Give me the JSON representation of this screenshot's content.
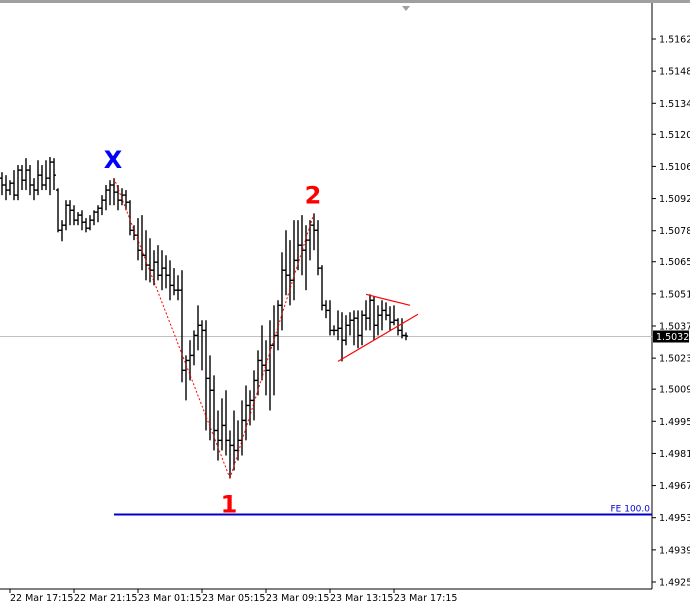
{
  "chart_data": {
    "type": "ohlc-bar",
    "title": "",
    "xlabel": "",
    "ylabel": "",
    "ylim": [
      1.492,
      1.5172
    ],
    "grid": false,
    "price_ticks": [
      "1.51620",
      "1.51480",
      "1.51340",
      "1.51205",
      "1.51065",
      "1.50925",
      "1.50785",
      "1.50650",
      "1.50510",
      "1.50370",
      "1.50230",
      "1.50095",
      "1.49955",
      "1.49815",
      "1.49675",
      "1.49535",
      "1.49395",
      "1.49255"
    ],
    "time_ticks": [
      {
        "bar": 2,
        "label": "22 Mar 17:15"
      },
      {
        "bar": 18,
        "label": "22 Mar 21:15"
      },
      {
        "bar": 34,
        "label": "23 Mar 01:15"
      },
      {
        "bar": 50,
        "label": "23 Mar 05:15"
      },
      {
        "bar": 66,
        "label": "23 Mar 09:15"
      },
      {
        "bar": 82,
        "label": "23 Mar 13:15"
      },
      {
        "bar": 98,
        "label": "23 Mar 17:15"
      }
    ],
    "current_price": {
      "value": 1.50326,
      "label": "1.50326"
    },
    "bars_ohlc": [
      [
        1.51014,
        1.5104,
        1.5094,
        1.50984
      ],
      [
        1.50984,
        1.51027,
        1.50918,
        1.50962
      ],
      [
        1.50962,
        1.51005,
        1.5094,
        1.50992
      ],
      [
        1.50992,
        1.51049,
        1.50918,
        1.5094
      ],
      [
        1.5094,
        1.51071,
        1.50918,
        1.51049
      ],
      [
        1.51049,
        1.51071,
        1.50962,
        1.51005
      ],
      [
        1.51005,
        1.51101,
        1.50962,
        1.51049
      ],
      [
        1.51049,
        1.51071,
        1.5094,
        1.50984
      ],
      [
        1.50984,
        1.51014,
        1.50918,
        1.50962
      ],
      [
        1.50962,
        1.51092,
        1.5094,
        1.51027
      ],
      [
        1.51027,
        1.51071,
        1.50962,
        1.50984
      ],
      [
        1.50984,
        1.51092,
        1.50962,
        1.51014
      ],
      [
        1.51014,
        1.51106,
        1.5094,
        1.51084
      ],
      [
        1.51084,
        1.51101,
        1.50962,
        1.51027
      ],
      [
        1.50962,
        1.5097,
        1.50778,
        1.50787
      ],
      [
        1.50787,
        1.50831,
        1.50739,
        1.50809
      ],
      [
        1.50809,
        1.50918,
        1.50787,
        1.50896
      ],
      [
        1.50896,
        1.50918,
        1.50809,
        1.50874
      ],
      [
        1.50874,
        1.50896,
        1.50809,
        1.50831
      ],
      [
        1.50831,
        1.50866,
        1.50809,
        1.50853
      ],
      [
        1.50853,
        1.50874,
        1.50787,
        1.50822
      ],
      [
        1.50822,
        1.5084,
        1.50778,
        1.50796
      ],
      [
        1.50796,
        1.50853,
        1.50787,
        1.50831
      ],
      [
        1.50831,
        1.50874,
        1.50809,
        1.50866
      ],
      [
        1.50866,
        1.50896,
        1.50822,
        1.50883
      ],
      [
        1.50883,
        1.5094,
        1.50853,
        1.50918
      ],
      [
        1.50918,
        1.50984,
        1.50874,
        1.50962
      ],
      [
        1.50962,
        1.51005,
        1.50896,
        1.50984
      ],
      [
        1.50984,
        1.51014,
        1.50896,
        1.50953
      ],
      [
        1.50953,
        1.50984,
        1.50874,
        1.50918
      ],
      [
        1.50918,
        1.5097,
        1.50896,
        1.5094
      ],
      [
        1.5094,
        1.50962,
        1.50874,
        1.50909
      ],
      [
        1.50909,
        1.50918,
        1.50765,
        1.50787
      ],
      [
        1.50787,
        1.50809,
        1.50744,
        1.50765
      ],
      [
        1.50765,
        1.5084,
        1.50656,
        1.507
      ],
      [
        1.507,
        1.50853,
        1.50613,
        1.50678
      ],
      [
        1.50678,
        1.50787,
        1.50569,
        1.50635
      ],
      [
        1.50635,
        1.50752,
        1.5056,
        1.50613
      ],
      [
        1.50613,
        1.507,
        1.50547,
        1.50648
      ],
      [
        1.50648,
        1.50722,
        1.50569,
        1.50591
      ],
      [
        1.50591,
        1.507,
        1.50526,
        1.50622
      ],
      [
        1.50622,
        1.50678,
        1.50534,
        1.50591
      ],
      [
        1.50591,
        1.50656,
        1.50482,
        1.50547
      ],
      [
        1.50547,
        1.50622,
        1.50504,
        1.50526
      ],
      [
        1.50526,
        1.50591,
        1.50482,
        1.50526
      ],
      [
        1.50526,
        1.50613,
        1.50125,
        1.50177
      ],
      [
        1.50177,
        1.50242,
        1.50046,
        1.5022
      ],
      [
        1.5022,
        1.50308,
        1.50133,
        1.50242
      ],
      [
        1.50242,
        1.50351,
        1.50199,
        1.50329
      ],
      [
        1.50329,
        1.5046,
        1.50264,
        1.50373
      ],
      [
        1.50373,
        1.50395,
        1.50177,
        1.50351
      ],
      [
        1.50351,
        1.50395,
        1.49915,
        1.50142
      ],
      [
        1.50142,
        1.50242,
        1.49872,
        1.5009
      ],
      [
        1.5009,
        1.50155,
        1.49828,
        1.49915
      ],
      [
        1.49915,
        1.50002,
        1.49784,
        1.49872
      ],
      [
        1.49872,
        1.50055,
        1.49828,
        1.49937
      ],
      [
        1.49937,
        1.5009,
        1.49806,
        1.49872
      ],
      [
        1.49872,
        1.49915,
        1.49706,
        1.4985
      ],
      [
        1.4985,
        1.50002,
        1.49741,
        1.49828
      ],
      [
        1.49828,
        1.49959,
        1.49784,
        1.49872
      ],
      [
        1.49872,
        1.50046,
        1.49806,
        1.49959
      ],
      [
        1.49959,
        1.50111,
        1.49872,
        1.50024
      ],
      [
        1.50024,
        1.5009,
        1.49937,
        1.50046
      ],
      [
        1.50046,
        1.50177,
        1.49959,
        1.50133
      ],
      [
        1.50133,
        1.50264,
        1.50068,
        1.5022
      ],
      [
        1.5022,
        1.50373,
        1.50133,
        1.50199
      ],
      [
        1.50199,
        1.50308,
        1.50068,
        1.50177
      ],
      [
        1.50177,
        1.50395,
        1.50002,
        1.50286
      ],
      [
        1.50286,
        1.5046,
        1.50068,
        1.50329
      ],
      [
        1.50329,
        1.50482,
        1.50264,
        1.5046
      ],
      [
        1.5046,
        1.50691,
        1.50351,
        1.50613
      ],
      [
        1.50613,
        1.50787,
        1.50504,
        1.50591
      ],
      [
        1.50591,
        1.50744,
        1.5046,
        1.50569
      ],
      [
        1.50569,
        1.50831,
        1.50482,
        1.50656
      ],
      [
        1.50656,
        1.50831,
        1.50613,
        1.50722
      ],
      [
        1.50722,
        1.50853,
        1.50591,
        1.507
      ],
      [
        1.507,
        1.50809,
        1.50526,
        1.50744
      ],
      [
        1.50744,
        1.50831,
        1.50656,
        1.50809
      ],
      [
        1.50809,
        1.50861,
        1.507,
        1.50787
      ],
      [
        1.50787,
        1.50831,
        1.50591,
        1.50622
      ],
      [
        1.50622,
        1.50635,
        1.50438,
        1.5046
      ],
      [
        1.5046,
        1.50482,
        1.50404,
        1.50438
      ],
      [
        1.50438,
        1.50482,
        1.50329,
        1.50351
      ],
      [
        1.50351,
        1.50373,
        1.50329,
        1.50351
      ],
      [
        1.50351,
        1.50438,
        1.50308,
        1.5036
      ],
      [
        1.5036,
        1.5043,
        1.50216,
        1.50308
      ],
      [
        1.50308,
        1.50417,
        1.50286,
        1.50373
      ],
      [
        1.50373,
        1.5043,
        1.50329,
        1.50395
      ],
      [
        1.50395,
        1.50438,
        1.50286,
        1.50404
      ],
      [
        1.50404,
        1.50438,
        1.50273,
        1.50329
      ],
      [
        1.50329,
        1.50438,
        1.50286,
        1.50417
      ],
      [
        1.50417,
        1.50482,
        1.50351,
        1.50404
      ],
      [
        1.50404,
        1.50508,
        1.50351,
        1.50482
      ],
      [
        1.50482,
        1.505,
        1.50308,
        1.50373
      ],
      [
        1.50373,
        1.5046,
        1.50329,
        1.50417
      ],
      [
        1.50417,
        1.50482,
        1.50351,
        1.50438
      ],
      [
        1.50438,
        1.50473,
        1.50395,
        1.50417
      ],
      [
        1.50417,
        1.50456,
        1.50351,
        1.50386
      ],
      [
        1.50386,
        1.5046,
        1.50373,
        1.50395
      ],
      [
        1.50395,
        1.50404,
        1.50329,
        1.50351
      ],
      [
        1.50351,
        1.50404,
        1.50316,
        1.50329
      ],
      [
        1.50329,
        1.50342,
        1.50308,
        1.50326
      ]
    ],
    "annotations": {
      "zigzag": {
        "color": "#ff0000",
        "points": [
          {
            "bar": 28,
            "price": 1.51014,
            "label": "X",
            "label_color": "#0000ff"
          },
          {
            "bar": 57,
            "price": 1.49706,
            "label": "1",
            "label_color": "#ff0000"
          },
          {
            "bar": 78,
            "price": 1.50861,
            "label": "2",
            "label_color": "#ff0000"
          }
        ]
      },
      "triangle": {
        "color": "#ff0000",
        "upper": [
          {
            "bar": 91,
            "price": 1.50508
          },
          {
            "bar": 102,
            "price": 1.5046
          }
        ],
        "lower": [
          {
            "bar": 84,
            "price": 1.50216
          },
          {
            "bar": 104,
            "price": 1.50421
          }
        ]
      },
      "fibo_expansion": {
        "label": "FE 100.0",
        "price": 1.49549,
        "start_bar": 28,
        "color": "#0000cc"
      }
    },
    "colors": {
      "bars": "#000000",
      "current_price_line": "#c0c0c0",
      "background": "#ffffff"
    }
  }
}
